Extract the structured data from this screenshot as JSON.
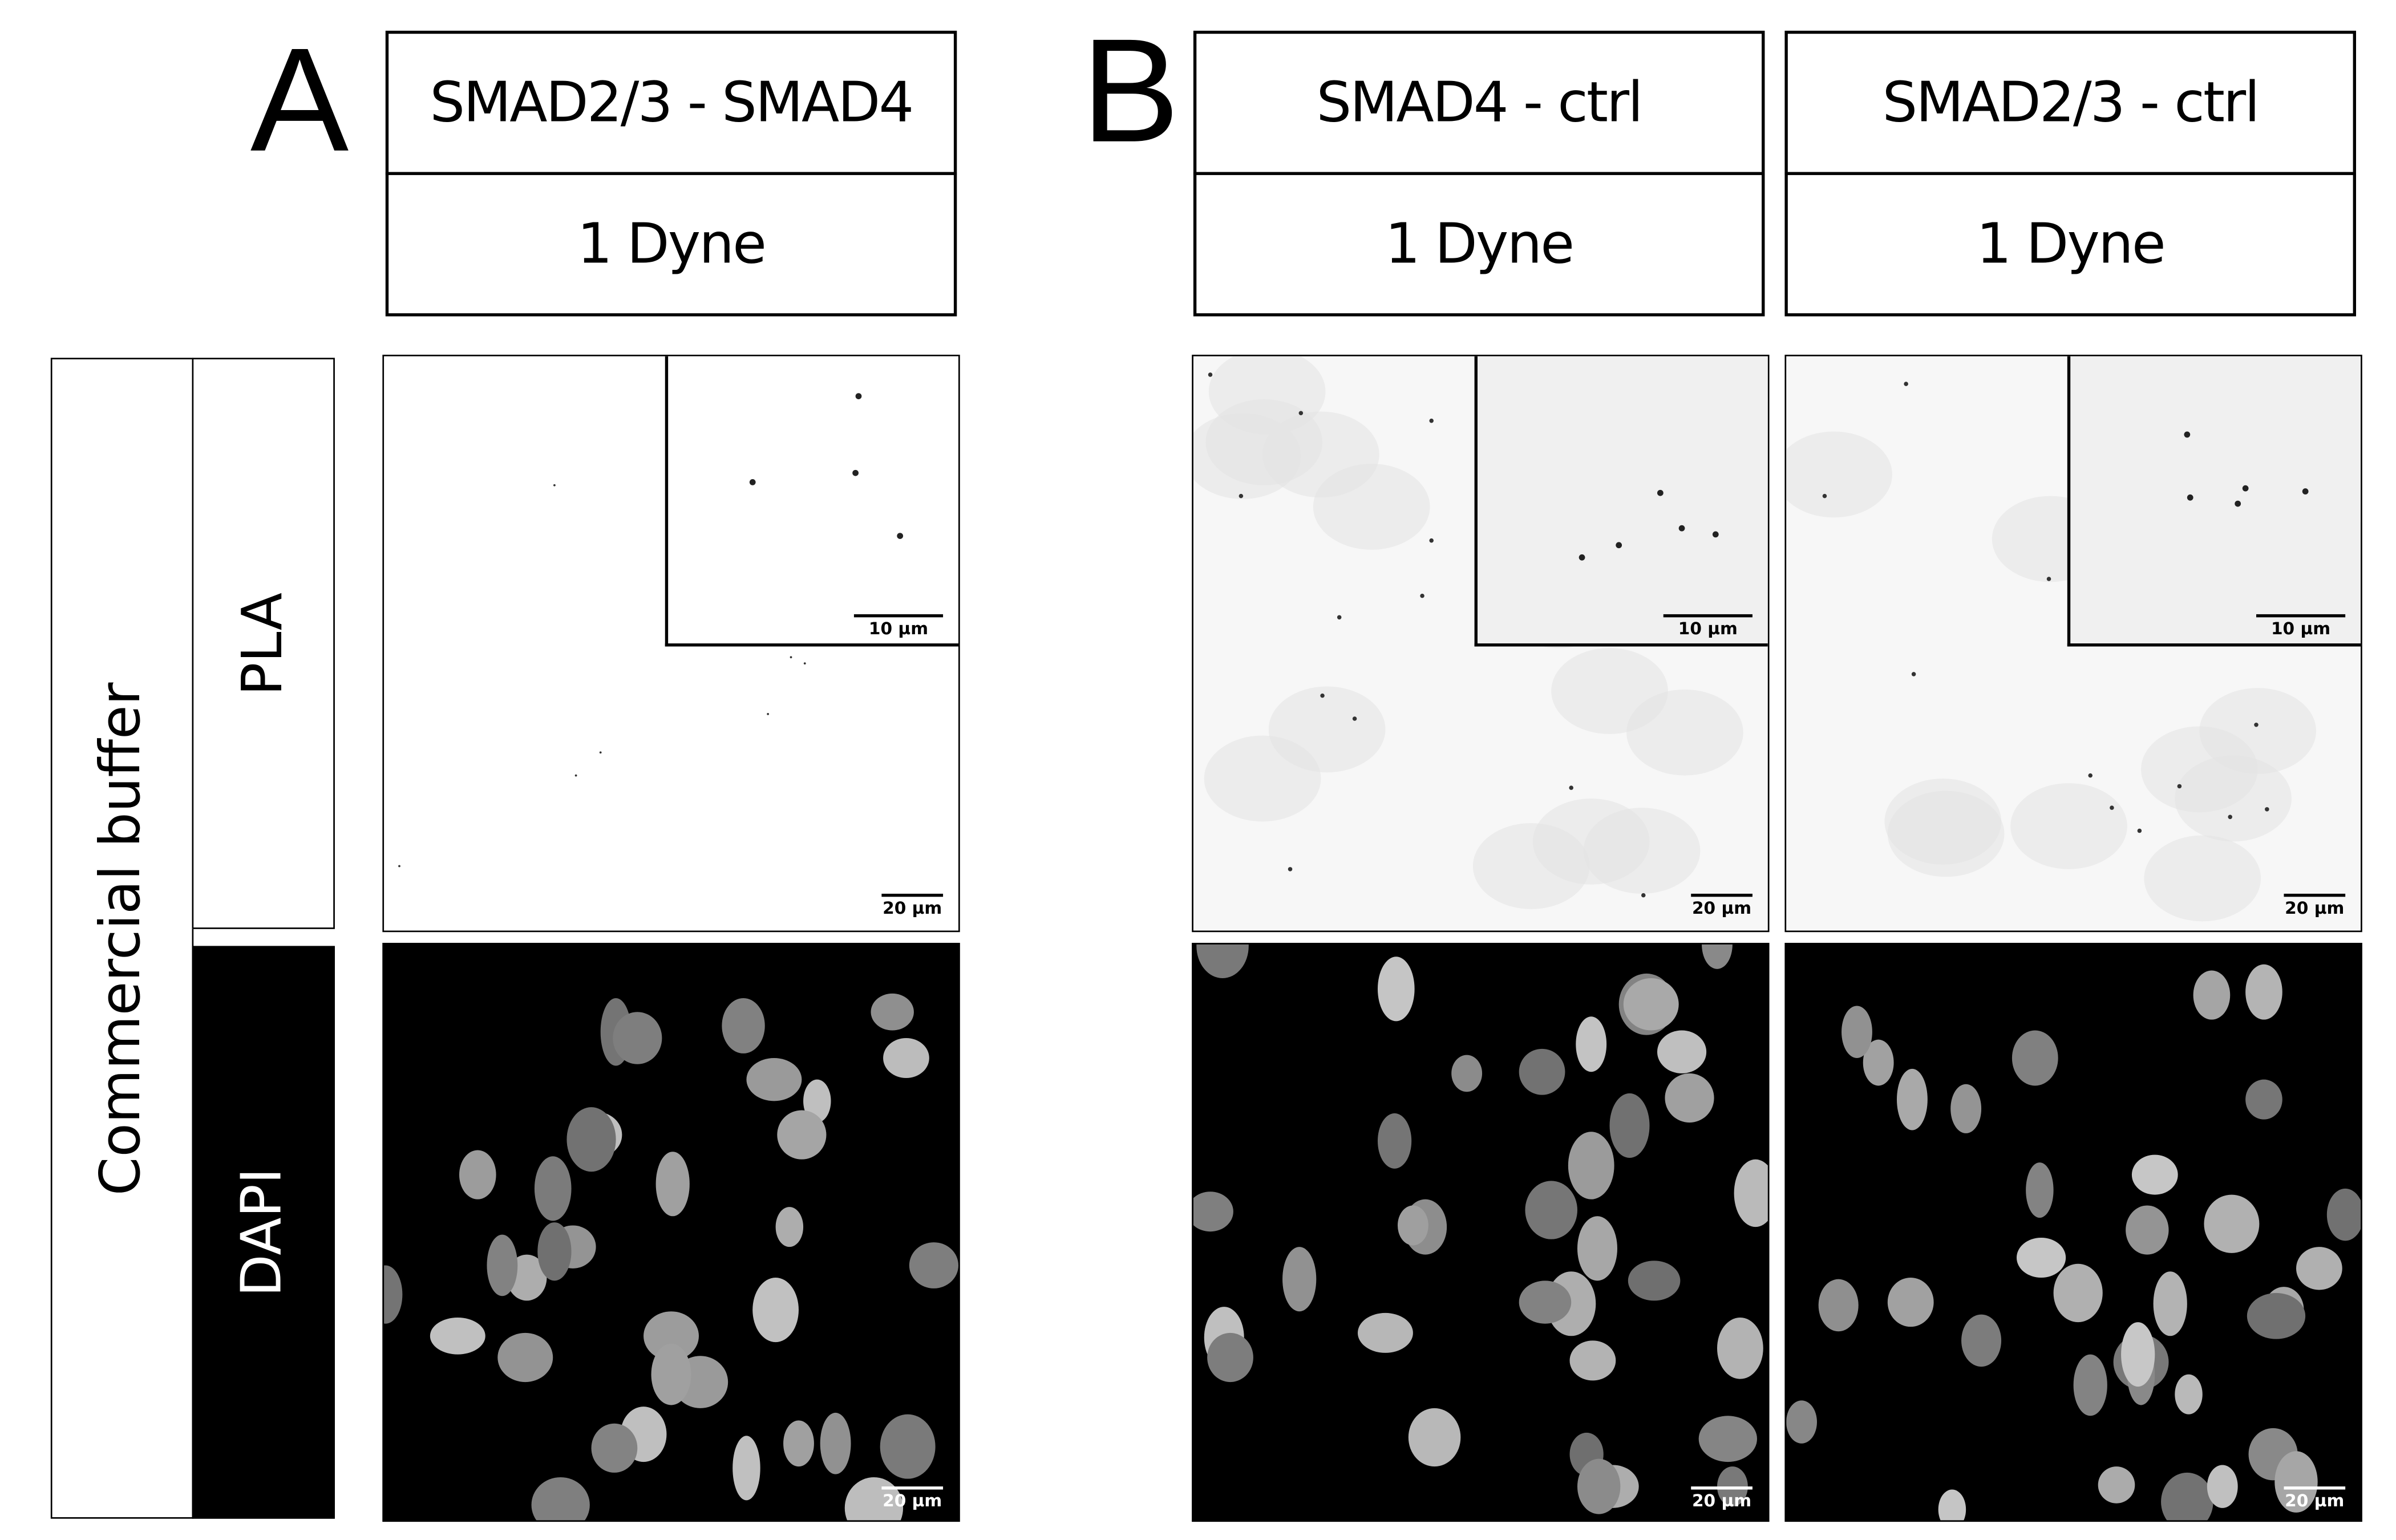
{
  "panel_letters": {
    "a": "A",
    "b": "B"
  },
  "columns": [
    {
      "target": "SMAD2/3 - SMAD4",
      "condition": "1 Dyne",
      "pla_scale": "20 µm",
      "inset_scale": "10 µm",
      "dapi_scale": "20 µm"
    },
    {
      "target": "SMAD4 - ctrl",
      "condition": "1 Dyne",
      "pla_scale": "20 µm",
      "inset_scale": "10 µm",
      "dapi_scale": "20 µm"
    },
    {
      "target": "SMAD2/3 - ctrl",
      "condition": "1 Dyne",
      "pla_scale": "20 µm",
      "inset_scale": "10 µm",
      "dapi_scale": "20 µm"
    }
  ],
  "row_labels": {
    "buffer": "Commercial buffer",
    "pla": "PLA",
    "dapi": "DAPI"
  }
}
